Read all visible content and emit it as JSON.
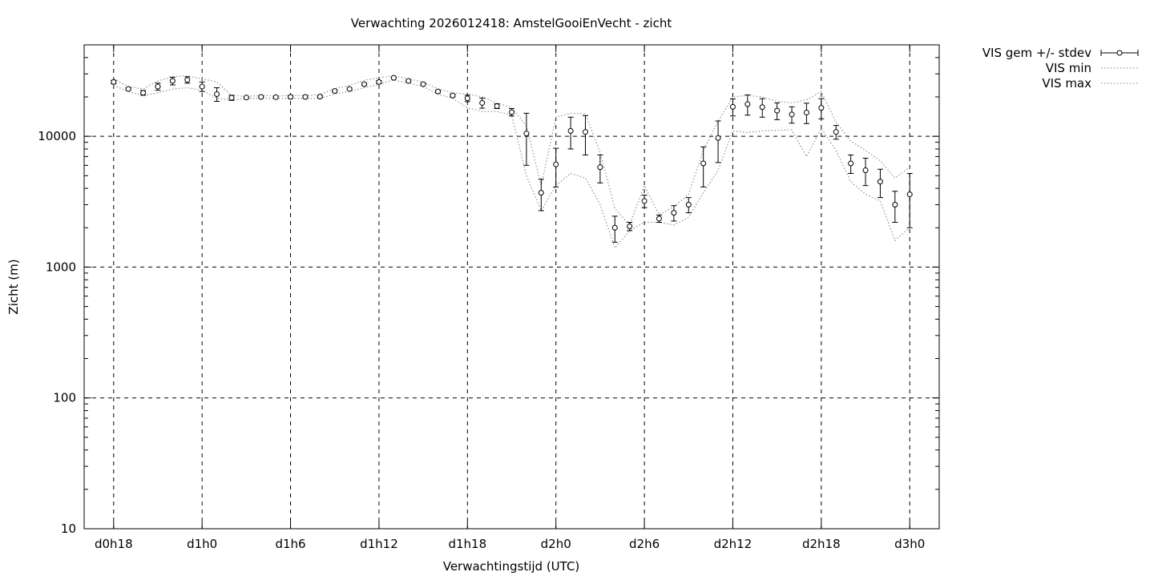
{
  "chart_data": {
    "type": "scatter",
    "title": "Verwachting 2026012418: AmstelGooiEnVecht - zicht",
    "xlabel": "Verwachtingstijd (UTC)",
    "ylabel": "Zicht (m)",
    "y_scale": "log",
    "ylim": [
      10,
      50000
    ],
    "xlim_hours": [
      16,
      74
    ],
    "grid": true,
    "legend_position": "outside-top-right",
    "y_ticks": [
      {
        "value": 10,
        "label": "10"
      },
      {
        "value": 100,
        "label": "100"
      },
      {
        "value": 1000,
        "label": "1000"
      },
      {
        "value": 10000,
        "label": "10000"
      }
    ],
    "x_ticks": [
      {
        "value": 18,
        "label": "d0h18"
      },
      {
        "value": 24,
        "label": "d1h0"
      },
      {
        "value": 30,
        "label": "d1h6"
      },
      {
        "value": 36,
        "label": "d1h12"
      },
      {
        "value": 42,
        "label": "d1h18"
      },
      {
        "value": 48,
        "label": "d2h0"
      },
      {
        "value": 54,
        "label": "d2h6"
      },
      {
        "value": 60,
        "label": "d2h12"
      },
      {
        "value": 66,
        "label": "d2h18"
      },
      {
        "value": 72,
        "label": "d3h0"
      }
    ],
    "series": [
      {
        "name": "VIS gem +/- stdev",
        "style": "points-errorbars",
        "color": "#000000",
        "x": [
          18,
          19,
          20,
          21,
          22,
          23,
          24,
          25,
          26,
          27,
          28,
          29,
          30,
          31,
          32,
          33,
          34,
          35,
          36,
          37,
          38,
          39,
          40,
          41,
          42,
          43,
          44,
          45,
          46,
          47,
          48,
          49,
          50,
          51,
          52,
          53,
          54,
          55,
          56,
          57,
          58,
          59,
          60,
          61,
          62,
          63,
          64,
          65,
          66,
          67,
          68,
          69,
          70,
          71,
          72
        ],
        "y": [
          26000,
          23000,
          21500,
          24000,
          26500,
          27000,
          24000,
          21000,
          19700,
          19800,
          20000,
          19900,
          20000,
          20000,
          20100,
          22200,
          23000,
          25000,
          26000,
          28000,
          26500,
          25000,
          22000,
          20500,
          19500,
          18000,
          17000,
          15300,
          10500,
          3700,
          6100,
          11000,
          10800,
          5800,
          2000,
          2050,
          3200,
          2350,
          2600,
          3000,
          6200,
          9700,
          16800,
          17600,
          16700,
          15700,
          14700,
          15200,
          16500,
          10800,
          6200,
          5500,
          4500,
          3000,
          3600
        ],
        "yerr": [
          800,
          500,
          900,
          1500,
          1800,
          1500,
          2000,
          2500,
          900,
          300,
          300,
          300,
          500,
          300,
          400,
          500,
          400,
          500,
          700,
          400,
          400,
          300,
          500,
          500,
          1100,
          1600,
          700,
          1000,
          4500,
          1000,
          2000,
          3000,
          3600,
          1400,
          450,
          150,
          350,
          150,
          350,
          400,
          2100,
          3400,
          2500,
          3100,
          2700,
          2300,
          2100,
          2700,
          2900,
          1300,
          1000,
          1300,
          1100,
          800,
          1600
        ]
      },
      {
        "name": "VIS min",
        "style": "dotted-line",
        "color": "#999999",
        "x": [
          18,
          19,
          20,
          21,
          22,
          23,
          24,
          25,
          26,
          27,
          28,
          29,
          30,
          31,
          32,
          33,
          34,
          35,
          36,
          37,
          38,
          39,
          40,
          41,
          42,
          43,
          44,
          45,
          46,
          47,
          48,
          49,
          50,
          51,
          52,
          53,
          54,
          55,
          56,
          57,
          58,
          59,
          60,
          61,
          62,
          63,
          64,
          65,
          66,
          67,
          68,
          69,
          70,
          71,
          72
        ],
        "y": [
          24500,
          22000,
          20500,
          21500,
          23000,
          23500,
          22500,
          19500,
          19000,
          19500,
          19500,
          19500,
          19500,
          19500,
          19500,
          21000,
          22000,
          23500,
          25000,
          27000,
          25500,
          24000,
          21000,
          19500,
          16500,
          15500,
          15500,
          14500,
          5000,
          2700,
          4200,
          5200,
          4800,
          3000,
          1400,
          1900,
          2200,
          2200,
          2100,
          2400,
          3700,
          5500,
          11000,
          10700,
          11000,
          11100,
          11200,
          7000,
          11500,
          7800,
          4500,
          3600,
          3200,
          1600,
          2000
        ]
      },
      {
        "name": "VIS max",
        "style": "dotted-line",
        "color": "#999999",
        "x": [
          18,
          19,
          20,
          21,
          22,
          23,
          24,
          25,
          26,
          27,
          28,
          29,
          30,
          31,
          32,
          33,
          34,
          35,
          36,
          37,
          38,
          39,
          40,
          41,
          42,
          43,
          44,
          45,
          46,
          47,
          48,
          49,
          50,
          51,
          52,
          53,
          54,
          55,
          56,
          57,
          58,
          59,
          60,
          61,
          62,
          63,
          64,
          65,
          66,
          67,
          68,
          69,
          70,
          71,
          72
        ],
        "y": [
          27500,
          24000,
          23000,
          26500,
          28500,
          29000,
          27500,
          26000,
          20500,
          20200,
          20500,
          20300,
          20500,
          20500,
          20800,
          23200,
          24500,
          26800,
          28000,
          29000,
          27500,
          26000,
          23000,
          21500,
          21000,
          20000,
          18000,
          16500,
          12000,
          4200,
          14000,
          15000,
          14800,
          7500,
          2800,
          2100,
          4200,
          2500,
          2900,
          3600,
          7800,
          13000,
          20000,
          20500,
          20000,
          18500,
          18000,
          19000,
          22000,
          12800,
          9200,
          7800,
          6500,
          4800,
          5800
        ]
      }
    ]
  }
}
